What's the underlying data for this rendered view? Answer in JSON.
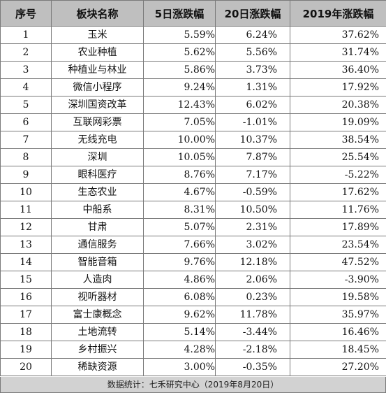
{
  "table": {
    "headers": [
      "序号",
      "板块名称",
      "5日涨跌幅",
      "20日涨跌幅",
      "2019年涨跌幅"
    ],
    "rows": [
      {
        "idx": "1",
        "name": "玉米",
        "d5": "5.59%",
        "d20": "6.24%",
        "ytd": "37.62%"
      },
      {
        "idx": "2",
        "name": "农业种植",
        "d5": "5.62%",
        "d20": "5.56%",
        "ytd": "31.74%"
      },
      {
        "idx": "3",
        "name": "种植业与林业",
        "d5": "5.86%",
        "d20": "3.73%",
        "ytd": "36.40%"
      },
      {
        "idx": "4",
        "name": "微信小程序",
        "d5": "9.24%",
        "d20": "1.31%",
        "ytd": "17.92%"
      },
      {
        "idx": "5",
        "name": "深圳国资改革",
        "d5": "12.43%",
        "d20": "6.02%",
        "ytd": "20.38%"
      },
      {
        "idx": "6",
        "name": "互联网彩票",
        "d5": "7.05%",
        "d20": "-1.01%",
        "ytd": "19.09%"
      },
      {
        "idx": "7",
        "name": "无线充电",
        "d5": "10.00%",
        "d20": "10.37%",
        "ytd": "38.54%"
      },
      {
        "idx": "8",
        "name": "深圳",
        "d5": "10.05%",
        "d20": "7.87%",
        "ytd": "25.54%"
      },
      {
        "idx": "9",
        "name": "眼科医疗",
        "d5": "8.76%",
        "d20": "7.17%",
        "ytd": "-5.22%"
      },
      {
        "idx": "10",
        "name": "生态农业",
        "d5": "4.67%",
        "d20": "-0.59%",
        "ytd": "17.62%"
      },
      {
        "idx": "11",
        "name": "中船系",
        "d5": "8.31%",
        "d20": "10.50%",
        "ytd": "11.76%"
      },
      {
        "idx": "12",
        "name": "甘肃",
        "d5": "5.07%",
        "d20": "2.31%",
        "ytd": "17.89%"
      },
      {
        "idx": "13",
        "name": "通信服务",
        "d5": "7.66%",
        "d20": "3.02%",
        "ytd": "23.54%"
      },
      {
        "idx": "14",
        "name": "智能音箱",
        "d5": "9.76%",
        "d20": "12.18%",
        "ytd": "47.52%"
      },
      {
        "idx": "15",
        "name": "人造肉",
        "d5": "4.86%",
        "d20": "2.06%",
        "ytd": "-3.90%"
      },
      {
        "idx": "16",
        "name": "视听器材",
        "d5": "6.08%",
        "d20": "0.23%",
        "ytd": "19.58%"
      },
      {
        "idx": "17",
        "name": "富士康概念",
        "d5": "9.62%",
        "d20": "11.78%",
        "ytd": "35.97%"
      },
      {
        "idx": "18",
        "name": "土地流转",
        "d5": "5.14%",
        "d20": "-3.44%",
        "ytd": "16.46%"
      },
      {
        "idx": "19",
        "name": "乡村振兴",
        "d5": "4.28%",
        "d20": "-2.18%",
        "ytd": "18.45%"
      },
      {
        "idx": "20",
        "name": "稀缺资源",
        "d5": "3.00%",
        "d20": "-0.35%",
        "ytd": "27.20%"
      }
    ]
  },
  "footer": {
    "text": "数据统计：七禾研究中心（2019年8月20日）"
  },
  "colors": {
    "header_bg": "#bfbfbf",
    "footer_bg": "#d2d2d2",
    "border": "#7a7a7a"
  }
}
